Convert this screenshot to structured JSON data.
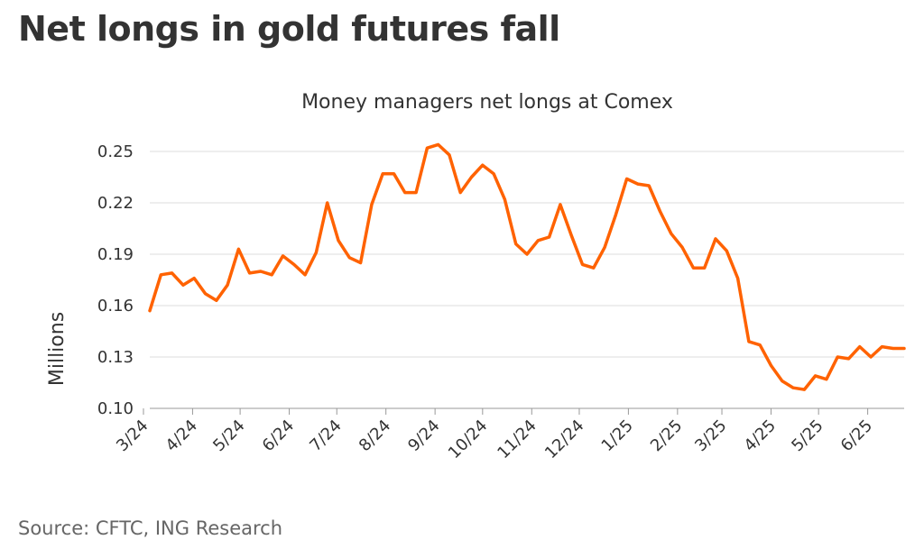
{
  "headline": "Net longs in gold futures fall",
  "source": "Source: CFTC, ING Research",
  "chart_data": {
    "type": "line",
    "title": "Money managers net longs at Comex",
    "xlabel": "",
    "ylabel": "Millions",
    "ylim": [
      0.1,
      0.25
    ],
    "yticks": [
      "0.10",
      "0.13",
      "0.16",
      "0.19",
      "0.22",
      "0.25"
    ],
    "x_ticks": [
      "3/24",
      "4/24",
      "5/24",
      "6/24",
      "7/24",
      "8/24",
      "9/24",
      "10/24",
      "11/24",
      "12/24",
      "1/25",
      "2/25",
      "3/25",
      "4/25",
      "5/25",
      "6/25"
    ],
    "grid": true,
    "line_color": "#FF6200",
    "series": [
      {
        "name": "",
        "x": [
          "2024-03-05",
          "2024-03-12",
          "2024-03-19",
          "2024-03-26",
          "2024-04-02",
          "2024-04-09",
          "2024-04-16",
          "2024-04-23",
          "2024-04-30",
          "2024-05-07",
          "2024-05-14",
          "2024-05-21",
          "2024-05-28",
          "2024-06-04",
          "2024-06-11",
          "2024-06-18",
          "2024-06-25",
          "2024-07-02",
          "2024-07-09",
          "2024-07-16",
          "2024-07-23",
          "2024-07-30",
          "2024-08-06",
          "2024-08-13",
          "2024-08-20",
          "2024-08-27",
          "2024-09-03",
          "2024-09-10",
          "2024-09-17",
          "2024-09-24",
          "2024-10-01",
          "2024-10-08",
          "2024-10-15",
          "2024-10-22",
          "2024-10-29",
          "2024-11-05",
          "2024-11-12",
          "2024-11-19",
          "2024-11-26",
          "2024-12-03",
          "2024-12-10",
          "2024-12-17",
          "2024-12-24",
          "2024-12-31",
          "2025-01-07",
          "2025-01-14",
          "2025-01-21",
          "2025-01-28",
          "2025-02-04",
          "2025-02-11",
          "2025-02-18",
          "2025-02-25",
          "2025-03-04",
          "2025-03-11",
          "2025-03-18",
          "2025-03-25",
          "2025-04-01",
          "2025-04-08",
          "2025-04-15",
          "2025-04-22",
          "2025-04-29",
          "2025-05-06",
          "2025-05-13",
          "2025-05-20",
          "2025-05-27",
          "2025-06-03",
          "2025-06-10",
          "2025-06-17",
          "2025-06-24"
        ],
        "values": [
          0.157,
          0.178,
          0.179,
          0.172,
          0.176,
          0.167,
          0.163,
          0.172,
          0.193,
          0.179,
          0.18,
          0.178,
          0.189,
          0.184,
          0.178,
          0.191,
          0.22,
          0.198,
          0.188,
          0.185,
          0.219,
          0.237,
          0.237,
          0.226,
          0.226,
          0.252,
          0.254,
          0.248,
          0.226,
          0.235,
          0.242,
          0.237,
          0.222,
          0.196,
          0.19,
          0.198,
          0.2,
          0.219,
          0.201,
          0.184,
          0.182,
          0.194,
          0.213,
          0.234,
          0.231,
          0.23,
          0.215,
          0.202,
          0.194,
          0.182,
          0.182,
          0.199,
          0.192,
          0.176,
          0.139,
          0.137,
          0.125,
          0.116,
          0.112,
          0.111,
          0.119,
          0.117,
          0.13,
          0.129,
          0.136,
          0.13,
          0.136,
          0.135,
          0.135
        ]
      }
    ]
  }
}
